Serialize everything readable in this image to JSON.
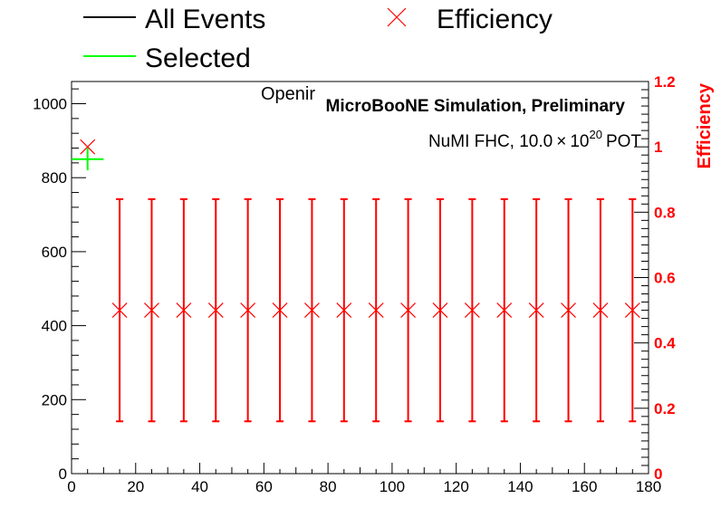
{
  "chart_data": {
    "type": "scatter",
    "title": "",
    "xlim": [
      0,
      180
    ],
    "ylim_left": [
      0,
      1060
    ],
    "ylim_right": [
      0,
      1.2
    ],
    "x_ticks": [
      "0",
      "20",
      "40",
      "60",
      "80",
      "100",
      "120",
      "140",
      "160",
      "180"
    ],
    "y_left_ticks": [
      "0",
      "200",
      "400",
      "600",
      "800",
      "1000"
    ],
    "y_right_ticks": [
      "0",
      "0.2",
      "0.4",
      "0.6",
      "0.8",
      "1",
      "1.2"
    ],
    "right_axis_label": "Efficiency",
    "right_axis_color": "#ff0000",
    "legend": [
      {
        "label": "All Events",
        "color": "#000000",
        "marker": "line"
      },
      {
        "label": "Efficiency",
        "color": "#ff0000",
        "marker": "x"
      },
      {
        "label": "Selected",
        "color": "#00ff00",
        "marker": "line"
      }
    ],
    "legend_placement": "top",
    "annotations": {
      "overlay_text": "Openir",
      "experiment": "MicroBooNE Simulation, Preliminary",
      "beam_prefix": "NuMI FHC, 10.0",
      "beam_times": "×",
      "beam_base": "10",
      "beam_exp": "20",
      "beam_suffix": "POT"
    },
    "series": [
      {
        "name": "Selected",
        "color": "#00ff00",
        "axis": "left",
        "points": [
          {
            "x": 5,
            "y": 850,
            "xerr": 5,
            "yerr": 30
          }
        ]
      },
      {
        "name": "Efficiency",
        "color": "#ff0000",
        "axis": "right",
        "points": [
          {
            "x": 5,
            "y": 1.0,
            "ylo": 1.0,
            "yhi": 1.0
          },
          {
            "x": 15,
            "y": 0.5,
            "ylo": 0.16,
            "yhi": 0.84
          },
          {
            "x": 25,
            "y": 0.5,
            "ylo": 0.16,
            "yhi": 0.84
          },
          {
            "x": 35,
            "y": 0.5,
            "ylo": 0.16,
            "yhi": 0.84
          },
          {
            "x": 45,
            "y": 0.5,
            "ylo": 0.16,
            "yhi": 0.84
          },
          {
            "x": 55,
            "y": 0.5,
            "ylo": 0.16,
            "yhi": 0.84
          },
          {
            "x": 65,
            "y": 0.5,
            "ylo": 0.16,
            "yhi": 0.84
          },
          {
            "x": 75,
            "y": 0.5,
            "ylo": 0.16,
            "yhi": 0.84
          },
          {
            "x": 85,
            "y": 0.5,
            "ylo": 0.16,
            "yhi": 0.84
          },
          {
            "x": 95,
            "y": 0.5,
            "ylo": 0.16,
            "yhi": 0.84
          },
          {
            "x": 105,
            "y": 0.5,
            "ylo": 0.16,
            "yhi": 0.84
          },
          {
            "x": 115,
            "y": 0.5,
            "ylo": 0.16,
            "yhi": 0.84
          },
          {
            "x": 125,
            "y": 0.5,
            "ylo": 0.16,
            "yhi": 0.84
          },
          {
            "x": 135,
            "y": 0.5,
            "ylo": 0.16,
            "yhi": 0.84
          },
          {
            "x": 145,
            "y": 0.5,
            "ylo": 0.16,
            "yhi": 0.84
          },
          {
            "x": 155,
            "y": 0.5,
            "ylo": 0.16,
            "yhi": 0.84
          },
          {
            "x": 165,
            "y": 0.5,
            "ylo": 0.16,
            "yhi": 0.84
          },
          {
            "x": 175,
            "y": 0.5,
            "ylo": 0.16,
            "yhi": 0.84
          }
        ]
      }
    ]
  }
}
